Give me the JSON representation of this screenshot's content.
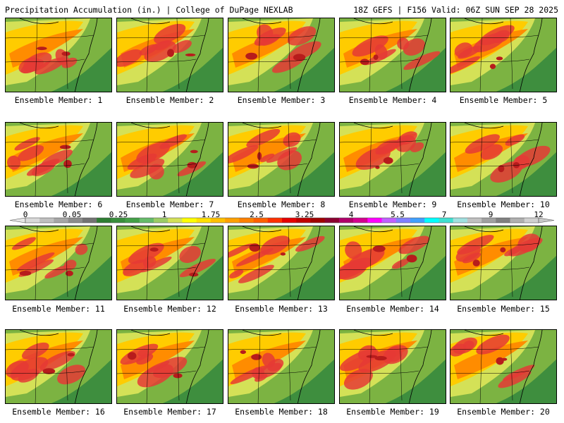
{
  "header": {
    "title_left": "Precipitation Accumulation (in.) | College of DuPage NEXLAB",
    "title_right": "18Z GEFS | F156 Valid: 06Z SUN SEP 28 2025"
  },
  "panels": [
    {
      "label": "Ensemble Member: 1"
    },
    {
      "label": "Ensemble Member: 2"
    },
    {
      "label": "Ensemble Member: 3"
    },
    {
      "label": "Ensemble Member: 4"
    },
    {
      "label": "Ensemble Member: 5"
    },
    {
      "label": "Ensemble Member: 6"
    },
    {
      "label": "Ensemble Member: 7"
    },
    {
      "label": "Ensemble Member: 8"
    },
    {
      "label": "Ensemble Member: 9"
    },
    {
      "label": "Ensemble Member: 10"
    },
    {
      "label": "Ensemble Member: 11"
    },
    {
      "label": "Ensemble Member: 12"
    },
    {
      "label": "Ensemble Member: 13"
    },
    {
      "label": "Ensemble Member: 14"
    },
    {
      "label": "Ensemble Member: 15"
    },
    {
      "label": "Ensemble Member: 16"
    },
    {
      "label": "Ensemble Member: 17"
    },
    {
      "label": "Ensemble Member: 18"
    },
    {
      "label": "Ensemble Member: 19"
    },
    {
      "label": "Ensemble Member: 20"
    }
  ],
  "colorbar": {
    "labels": [
      "0",
      "0.05",
      "0.25",
      "1",
      "1.75",
      "2.5",
      "3.25",
      "4",
      "5.5",
      "7",
      "9",
      "12"
    ],
    "colors": [
      "#d9d9d9",
      "#bfbfbf",
      "#a6a6a6",
      "#8c8c8c",
      "#737373",
      "#2e7d32",
      "#388e3c",
      "#43a047",
      "#66bb6a",
      "#9ccc65",
      "#d4e157",
      "#ffff00",
      "#ffe000",
      "#ffc000",
      "#ffa000",
      "#ff8000",
      "#ff6000",
      "#ff3000",
      "#e60000",
      "#c00000",
      "#a00000",
      "#8b0030",
      "#b0006a",
      "#d4008f",
      "#ff00ff",
      "#c060ff",
      "#8080ff",
      "#40a0ff",
      "#00ffff",
      "#40e0d0",
      "#a0e0e0",
      "#c0c0c0",
      "#a0a0a0",
      "#808080",
      "#b0b0b0",
      "#d0d0d0"
    ]
  }
}
